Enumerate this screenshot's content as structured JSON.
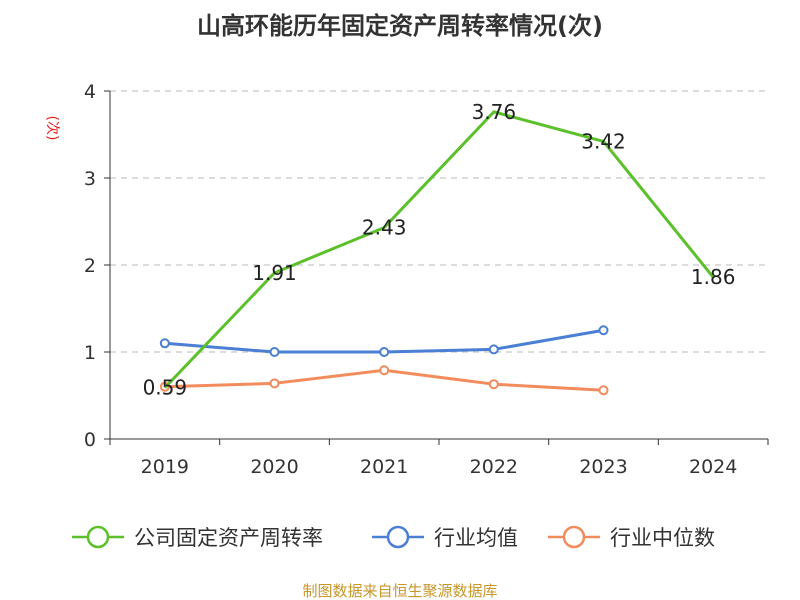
{
  "chart_data": {
    "type": "line",
    "title": "山高环能历年固定资产周转率情况(次)",
    "ylabel": "(次)",
    "xlabel": "",
    "categories": [
      "2019",
      "2020",
      "2021",
      "2022",
      "2023",
      "2024"
    ],
    "ylim": [
      0,
      4
    ],
    "yticks": [
      "0",
      "1",
      "2",
      "3",
      "4"
    ],
    "grid": true,
    "legend_position": "bottom",
    "series": [
      {
        "name": "公司固定资产周转率",
        "color": "#5cc02a",
        "values": [
          0.59,
          1.91,
          2.43,
          3.76,
          3.42,
          1.86
        ],
        "labels": [
          "0.59",
          "1.91",
          "2.43",
          "3.76",
          "3.42",
          "1.86"
        ]
      },
      {
        "name": "行业均值",
        "color": "#4a7fd4",
        "values": [
          1.1,
          1.0,
          1.0,
          1.03,
          1.25,
          null
        ]
      },
      {
        "name": "行业中位数",
        "color": "#f28c5c",
        "values": [
          0.6,
          0.64,
          0.79,
          0.63,
          0.56,
          null
        ]
      }
    ],
    "source": "制图数据来自恒生聚源数据库"
  }
}
